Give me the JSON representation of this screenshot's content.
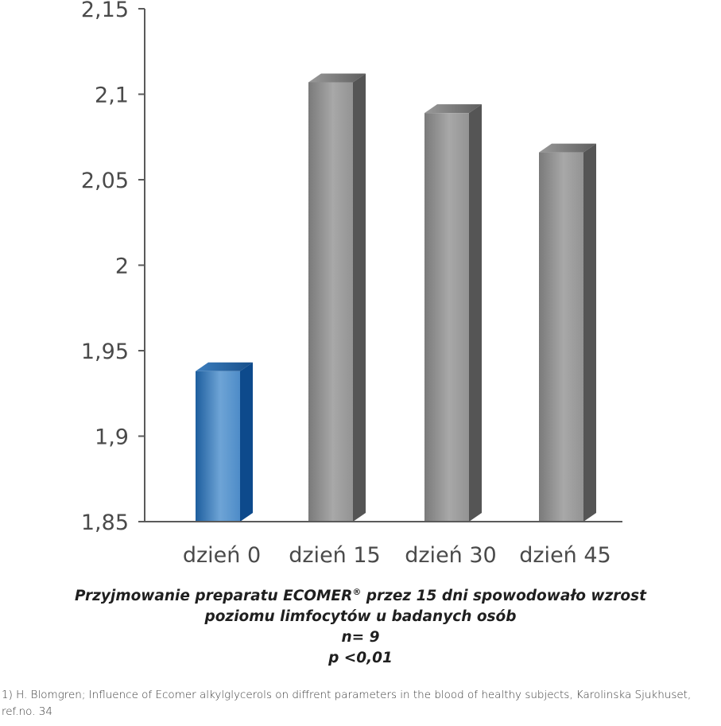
{
  "chart_data": {
    "type": "bar",
    "categories": [
      "dzień 0",
      "dzień 15",
      "dzień 30",
      "dzień 45"
    ],
    "values": [
      1.938,
      2.107,
      2.089,
      2.066
    ],
    "ylim": [
      1.85,
      2.15
    ],
    "yticks": [
      {
        "value": 1.85,
        "label": "1,85"
      },
      {
        "value": 1.9,
        "label": "1,9"
      },
      {
        "value": 1.95,
        "label": "1,95"
      },
      {
        "value": 2.0,
        "label": "2"
      },
      {
        "value": 2.05,
        "label": "2,05"
      },
      {
        "value": 2.1,
        "label": "2,1"
      },
      {
        "value": 2.15,
        "label": "2,15"
      }
    ],
    "grid": false,
    "bar_colors": [
      "#2a73b8",
      "#8a8a8a",
      "#8a8a8a",
      "#8a8a8a"
    ],
    "style": "3d-columns"
  },
  "caption": {
    "line1_pre": "Przyjmowanie preparatu ECOMER",
    "line1_sup": "®",
    "line1_post": " przez 15 dni spowodowało wzrost",
    "line2": "poziomu limfocytów u badanych osób",
    "line3": "n= 9",
    "line4": "p <0,01"
  },
  "footnote": "1) H. Blomgren; Influence of Ecomer alkylglycerols on diffrent parameters in the blood of healthy subjects, Karolinska Sjukhuset, ref.no. 34"
}
